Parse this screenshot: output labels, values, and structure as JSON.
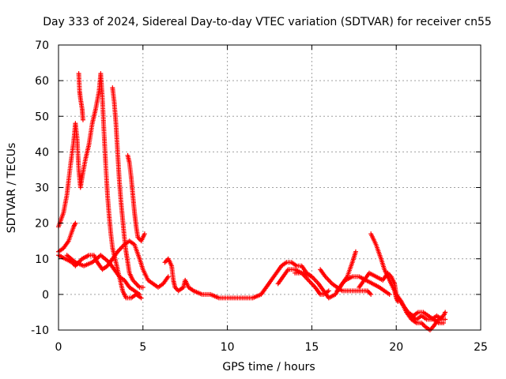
{
  "chart_data": {
    "type": "scatter",
    "title": "Day 333 of 2024, Sidereal Day-to-day VTEC variation (SDTVAR) for receiver cn55",
    "xlabel": "GPS time / hours",
    "ylabel": "SDTVAR / TECUs",
    "xlim": [
      0,
      25
    ],
    "ylim": [
      -10,
      70
    ],
    "xticks": [
      "0",
      "5",
      "10",
      "15",
      "20",
      "25"
    ],
    "yticks": [
      "-10",
      "0",
      "10",
      "20",
      "30",
      "40",
      "50",
      "60",
      "70"
    ],
    "grid": true,
    "legend": "none",
    "marker": "plus",
    "series_color": "#ff0000",
    "series": [
      {
        "name": "s1",
        "points": [
          [
            0.0,
            19
          ],
          [
            0.3,
            23
          ],
          [
            0.5,
            28
          ],
          [
            0.7,
            36
          ],
          [
            0.9,
            43
          ],
          [
            1.0,
            48
          ],
          [
            1.1,
            44
          ],
          [
            1.2,
            35
          ],
          [
            1.3,
            30
          ],
          [
            1.4,
            33
          ],
          [
            1.6,
            38
          ],
          [
            1.8,
            42
          ],
          [
            2.0,
            48
          ],
          [
            2.2,
            52
          ],
          [
            2.4,
            57
          ],
          [
            2.5,
            62
          ],
          [
            2.6,
            55
          ],
          [
            2.7,
            45
          ],
          [
            2.8,
            36
          ],
          [
            2.9,
            28
          ],
          [
            3.0,
            22
          ],
          [
            3.1,
            17
          ],
          [
            3.2,
            13
          ],
          [
            3.4,
            9
          ],
          [
            3.6,
            5
          ],
          [
            3.8,
            1
          ],
          [
            4.0,
            -1
          ],
          [
            4.3,
            -1
          ],
          [
            4.6,
            0
          ],
          [
            4.9,
            -1
          ]
        ]
      },
      {
        "name": "s2",
        "points": [
          [
            0.0,
            12
          ],
          [
            0.3,
            13
          ],
          [
            0.6,
            15
          ],
          [
            0.9,
            19
          ],
          [
            1.0,
            20
          ]
        ]
      },
      {
        "name": "s3",
        "points": [
          [
            1.2,
            62
          ],
          [
            1.25,
            57
          ],
          [
            1.3,
            55
          ],
          [
            1.4,
            52
          ],
          [
            1.45,
            49
          ]
        ]
      },
      {
        "name": "s4",
        "points": [
          [
            3.2,
            58
          ],
          [
            3.3,
            54
          ],
          [
            3.4,
            48
          ],
          [
            3.5,
            40
          ],
          [
            3.6,
            32
          ],
          [
            3.7,
            26
          ],
          [
            3.8,
            21
          ],
          [
            3.9,
            16
          ],
          [
            4.0,
            12
          ],
          [
            4.1,
            9
          ],
          [
            4.2,
            6
          ],
          [
            4.4,
            4
          ],
          [
            4.6,
            3
          ],
          [
            4.8,
            2
          ],
          [
            5.0,
            2
          ]
        ]
      },
      {
        "name": "s5",
        "points": [
          [
            4.1,
            39
          ],
          [
            4.2,
            37
          ],
          [
            4.3,
            33
          ],
          [
            4.4,
            28
          ],
          [
            4.5,
            23
          ],
          [
            4.6,
            19
          ],
          [
            4.7,
            16
          ],
          [
            4.9,
            15
          ],
          [
            5.1,
            17
          ]
        ]
      },
      {
        "name": "s6",
        "points": [
          [
            0.0,
            11
          ],
          [
            0.4,
            10
          ],
          [
            0.8,
            9
          ],
          [
            1.0,
            8
          ],
          [
            1.4,
            10
          ],
          [
            1.8,
            11
          ],
          [
            2.1,
            11
          ],
          [
            2.3,
            9
          ],
          [
            2.6,
            7
          ],
          [
            2.9,
            8
          ],
          [
            3.2,
            10
          ],
          [
            3.5,
            12
          ],
          [
            3.9,
            14
          ],
          [
            4.2,
            15
          ],
          [
            4.5,
            14
          ],
          [
            4.8,
            10
          ],
          [
            5.0,
            7
          ],
          [
            5.3,
            4
          ],
          [
            5.6,
            3
          ],
          [
            5.9,
            2
          ],
          [
            6.2,
            3
          ],
          [
            6.5,
            5
          ]
        ]
      },
      {
        "name": "s7",
        "points": [
          [
            0.5,
            11
          ],
          [
            1.0,
            9
          ],
          [
            1.5,
            8
          ],
          [
            2.0,
            9
          ],
          [
            2.5,
            11
          ],
          [
            3.0,
            9
          ],
          [
            3.3,
            7
          ],
          [
            3.6,
            5
          ],
          [
            3.9,
            4
          ],
          [
            4.2,
            2
          ],
          [
            4.5,
            1
          ],
          [
            4.8,
            0
          ]
        ]
      },
      {
        "name": "s8",
        "points": [
          [
            6.3,
            9
          ],
          [
            6.5,
            10
          ],
          [
            6.7,
            8
          ],
          [
            6.8,
            4
          ],
          [
            6.9,
            2
          ],
          [
            7.1,
            1
          ],
          [
            7.4,
            2
          ],
          [
            7.5,
            4
          ],
          [
            7.7,
            2
          ],
          [
            8.0,
            1
          ],
          [
            8.5,
            0
          ],
          [
            9.0,
            0
          ],
          [
            9.5,
            -1
          ],
          [
            10.0,
            -1
          ],
          [
            10.5,
            -1
          ],
          [
            11.0,
            -1
          ],
          [
            11.5,
            -1
          ],
          [
            12.0,
            0
          ],
          [
            12.3,
            2
          ],
          [
            12.6,
            4
          ],
          [
            12.9,
            6
          ],
          [
            13.2,
            8
          ],
          [
            13.5,
            9
          ],
          [
            13.8,
            9
          ],
          [
            14.1,
            8
          ],
          [
            14.4,
            8
          ],
          [
            14.7,
            6
          ],
          [
            15.0,
            5
          ]
        ]
      },
      {
        "name": "s9",
        "points": [
          [
            13.0,
            3
          ],
          [
            13.3,
            5
          ],
          [
            13.6,
            7
          ],
          [
            14.0,
            7
          ],
          [
            14.4,
            6
          ],
          [
            14.8,
            4
          ],
          [
            15.2,
            2
          ],
          [
            15.5,
            0
          ],
          [
            15.7,
            0
          ],
          [
            16.0,
            1
          ]
        ]
      },
      {
        "name": "s10",
        "points": [
          [
            14.0,
            6
          ],
          [
            14.5,
            6
          ],
          [
            15.0,
            5
          ],
          [
            15.4,
            3
          ],
          [
            15.7,
            1
          ],
          [
            16.0,
            -1
          ],
          [
            16.4,
            0
          ],
          [
            16.8,
            3
          ],
          [
            17.1,
            5
          ],
          [
            17.4,
            9
          ],
          [
            17.6,
            12
          ]
        ]
      },
      {
        "name": "s11",
        "points": [
          [
            15.5,
            7
          ],
          [
            15.8,
            5
          ],
          [
            16.2,
            3
          ],
          [
            16.5,
            2
          ],
          [
            16.8,
            1
          ],
          [
            17.2,
            1
          ],
          [
            17.6,
            1
          ],
          [
            18.0,
            1
          ],
          [
            18.3,
            1
          ],
          [
            18.5,
            0
          ]
        ]
      },
      {
        "name": "s12",
        "points": [
          [
            16.5,
            1
          ],
          [
            16.8,
            3
          ],
          [
            17.0,
            4
          ],
          [
            17.4,
            5
          ],
          [
            17.8,
            5
          ],
          [
            18.2,
            4
          ],
          [
            18.6,
            3
          ],
          [
            19.0,
            2
          ],
          [
            19.3,
            1
          ],
          [
            19.6,
            0
          ]
        ]
      },
      {
        "name": "s13",
        "points": [
          [
            17.8,
            2
          ],
          [
            18.1,
            4
          ],
          [
            18.4,
            6
          ],
          [
            18.8,
            5
          ],
          [
            19.2,
            4
          ],
          [
            19.5,
            6
          ],
          [
            19.7,
            5
          ],
          [
            19.9,
            3
          ],
          [
            20.0,
            0
          ],
          [
            20.3,
            -2
          ],
          [
            20.6,
            -5
          ],
          [
            20.9,
            -7
          ],
          [
            21.2,
            -8
          ],
          [
            21.5,
            -8
          ],
          [
            21.7,
            -9
          ],
          [
            22.0,
            -10
          ],
          [
            22.2,
            -9
          ],
          [
            22.5,
            -7
          ],
          [
            22.8,
            -6
          ],
          [
            22.9,
            -5
          ]
        ]
      },
      {
        "name": "s14",
        "points": [
          [
            18.5,
            17
          ],
          [
            18.8,
            14
          ],
          [
            19.1,
            10
          ],
          [
            19.3,
            7
          ],
          [
            19.5,
            5
          ],
          [
            19.7,
            3
          ],
          [
            19.9,
            1
          ],
          [
            20.0,
            -1
          ],
          [
            20.1,
            -2
          ]
        ]
      },
      {
        "name": "s15",
        "points": [
          [
            20.1,
            -1
          ],
          [
            20.4,
            -3
          ],
          [
            20.7,
            -5
          ],
          [
            21.0,
            -6
          ],
          [
            21.3,
            -5
          ],
          [
            21.6,
            -5
          ],
          [
            21.9,
            -6
          ],
          [
            22.2,
            -7
          ],
          [
            22.5,
            -8
          ],
          [
            22.8,
            -8
          ]
        ]
      },
      {
        "name": "s16",
        "points": [
          [
            20.8,
            -6
          ],
          [
            21.2,
            -7
          ],
          [
            21.5,
            -6
          ],
          [
            21.8,
            -7
          ],
          [
            22.1,
            -7
          ],
          [
            22.4,
            -6
          ],
          [
            22.7,
            -7
          ],
          [
            22.9,
            -7
          ]
        ]
      }
    ]
  }
}
